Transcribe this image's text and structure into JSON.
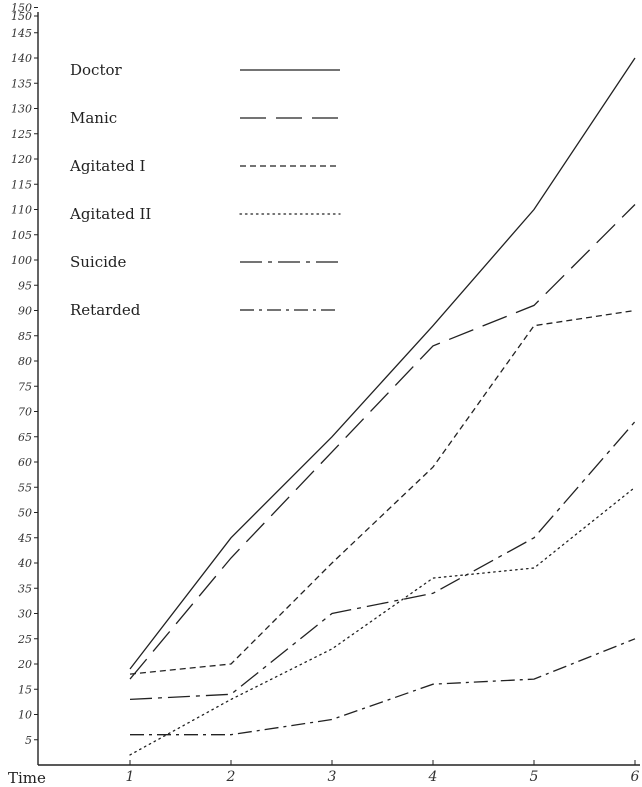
{
  "chart_data": {
    "type": "line",
    "title": "",
    "xlabel": "Time",
    "ylabel": "",
    "x": [
      1,
      2,
      3,
      4,
      5,
      6
    ],
    "x_ticks": [
      "1",
      "2",
      "3",
      "4",
      "5",
      "6"
    ],
    "y_ticks": [
      "5",
      "10",
      "15",
      "20",
      "25",
      "30",
      "35",
      "40",
      "45",
      "50",
      "55",
      "60",
      "65",
      "70",
      "75",
      "80",
      "85",
      "90",
      "95",
      "100",
      "105",
      "110",
      "115",
      "120",
      "125",
      "130",
      "135",
      "140",
      "145",
      "150",
      "150"
    ],
    "ylim": [
      0,
      150
    ],
    "legend_position": "top-left",
    "grid": false,
    "series": [
      {
        "name": "Doctor",
        "dash": "solid",
        "values": [
          19,
          45,
          65,
          87,
          110,
          140
        ]
      },
      {
        "name": "Manic",
        "dash": "long-dash",
        "values": [
          17,
          41,
          62,
          83,
          91,
          111
        ]
      },
      {
        "name": "Agitated I",
        "dash": "short-dash",
        "values": [
          18,
          20,
          40,
          59,
          87,
          90
        ]
      },
      {
        "name": "Agitated II",
        "dash": "dotted",
        "values": [
          2,
          13,
          23,
          37,
          39,
          55
        ]
      },
      {
        "name": "Suicide",
        "dash": "dash-dot",
        "values": [
          13,
          14,
          30,
          34,
          45,
          68
        ]
      },
      {
        "name": "Retarded",
        "dash": "dash-dot-short",
        "values": [
          6,
          6,
          9,
          16,
          17,
          25
        ]
      }
    ]
  }
}
